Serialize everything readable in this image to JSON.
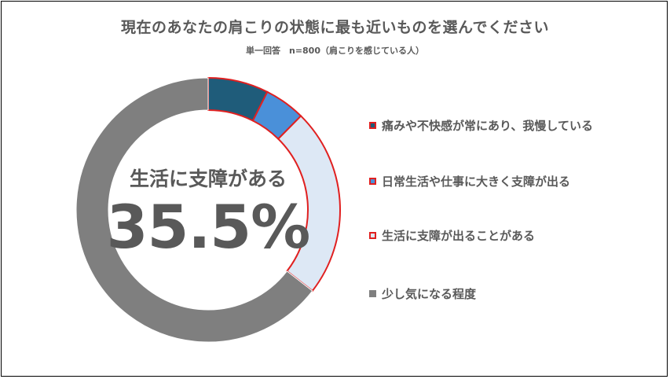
{
  "title": "現在のあなたの肩こりの状態に最も近いものを選んでください",
  "subtitle": "単一回答　n=800（肩こりを感じている人）",
  "center": {
    "label": "生活に支障がある",
    "value": "35.5%"
  },
  "chart_data": {
    "type": "pie",
    "variant": "donut",
    "categories": [
      "痛みや不快感が常にあり、我慢している",
      "日常生活や仕事に大きく支障が出る",
      "生活に支障が出ることがある",
      "少し気になる程度"
    ],
    "values": [
      7.4,
      5.0,
      23.1,
      64.5
    ],
    "colors": [
      "#1f5c7a",
      "#4a90d9",
      "#dde8f5",
      "#7f7f7f"
    ],
    "highlight_color": "#e02020",
    "legend": "right"
  }
}
